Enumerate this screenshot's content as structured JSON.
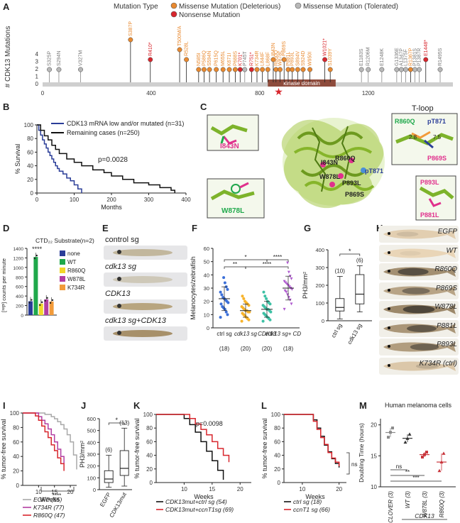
{
  "panel_letters": [
    "A",
    "B",
    "C",
    "D",
    "E",
    "F",
    "G",
    "H",
    "I",
    "J",
    "K",
    "L",
    "M"
  ],
  "colors": {
    "deleterious": "#e8892f",
    "nonsense": "#d8262d",
    "tolerated": "#b8b8b8",
    "kinase": "#8e4b3c",
    "black": "#111111",
    "red": "#d8262d",
    "blue": "#2a3d98",
    "green": "#1fa84b",
    "yellow": "#f2d729",
    "magenta": "#b23ea2",
    "orange": "#f29b3a",
    "ctrl": "#3b6fd8",
    "cdk13sg": "#f7b32b",
    "CDK13": "#3ec1a5",
    "rescue": "#b05bd0"
  },
  "panelA": {
    "ylabel": "# CDK13 Mutations",
    "legend": {
      "title": "Mutation Type",
      "items": [
        "Missense Mutation (Deleterious)",
        "Nonsense Mutation",
        "Missense Mutation (Tolerated)"
      ]
    },
    "axis_ticks": [
      "0",
      "400",
      "800",
      "1200"
    ],
    "yticks": [
      "0",
      "1",
      "2",
      "3",
      "4"
    ],
    "domain_label": "kinase domain",
    "chart_data": {
      "type": "lollipop",
      "xlim": [
        0,
        1512
      ],
      "ylim": [
        0,
        4
      ],
      "mutations": [
        {
          "label": "S325P",
          "pos": 25,
          "count": 1,
          "kind": "tolerated"
        },
        {
          "label": "S294N",
          "pos": 60,
          "count": 1,
          "kind": "tolerated"
        },
        {
          "label": "V327M",
          "pos": 140,
          "count": 1,
          "kind": "tolerated"
        },
        {
          "label": "S387P",
          "pos": 324,
          "count": 4,
          "kind": "deleterious"
        },
        {
          "label": "R410*",
          "pos": 397,
          "count": 2,
          "kind": "nonsense"
        },
        {
          "label": "T500M/A",
          "pos": 505,
          "count": 3,
          "kind": "deleterious"
        },
        {
          "label": "R528L",
          "pos": 530,
          "count": 2,
          "kind": "deleterious"
        },
        {
          "label": "N585I",
          "pos": 575,
          "count": 1,
          "kind": "deleterious"
        },
        {
          "label": "P586Q",
          "pos": 595,
          "count": 1,
          "kind": "deleterious"
        },
        {
          "label": "S594N",
          "pos": 615,
          "count": 1,
          "kind": "deleterious"
        },
        {
          "label": "P615Q",
          "pos": 640,
          "count": 1,
          "kind": "deleterious"
        },
        {
          "label": "M655L",
          "pos": 665,
          "count": 1,
          "kind": "deleterious"
        },
        {
          "label": "K671I",
          "pos": 688,
          "count": 1,
          "kind": "deleterious"
        },
        {
          "label": "P688S",
          "pos": 710,
          "count": 1,
          "kind": "deleterious"
        },
        {
          "label": "K701*",
          "pos": 728,
          "count": 1,
          "kind": "nonsense"
        },
        {
          "label": "P745T",
          "pos": 745,
          "count": 1,
          "kind": "tolerated"
        },
        {
          "label": "R751*",
          "pos": 770,
          "count": 1,
          "kind": "nonsense"
        },
        {
          "label": "K734R",
          "pos": 790,
          "count": 1,
          "kind": "deleterious"
        },
        {
          "label": "L844F",
          "pos": 810,
          "count": 1,
          "kind": "deleterious"
        },
        {
          "label": "L868F",
          "pos": 830,
          "count": 1,
          "kind": "deleterious"
        },
        {
          "label": "I843N",
          "pos": 850,
          "count": 2,
          "kind": "deleterious"
        },
        {
          "label": "R860Q",
          "pos": 860,
          "count": 1,
          "kind": "deleterious"
        },
        {
          "label": "W878L",
          "pos": 875,
          "count": 1,
          "kind": "deleterious"
        },
        {
          "label": "P869S",
          "pos": 890,
          "count": 2,
          "kind": "deleterious"
        },
        {
          "label": "P881L",
          "pos": 905,
          "count": 1,
          "kind": "deleterious"
        },
        {
          "label": "P893L",
          "pos": 920,
          "count": 1,
          "kind": "deleterious"
        },
        {
          "label": "S894V",
          "pos": 940,
          "count": 1,
          "kind": "deleterious"
        },
        {
          "label": "S924D",
          "pos": 960,
          "count": 1,
          "kind": "deleterious"
        },
        {
          "label": "W950I",
          "pos": 985,
          "count": 1,
          "kind": "deleterious"
        },
        {
          "label": "W1021*",
          "pos": 1040,
          "count": 2,
          "kind": "nonsense"
        },
        {
          "label": "S1039Y",
          "pos": 1060,
          "count": 1,
          "kind": "deleterious"
        },
        {
          "label": "E1183S",
          "pos": 1175,
          "count": 1,
          "kind": "tolerated"
        },
        {
          "label": "R1206M",
          "pos": 1200,
          "count": 1,
          "kind": "tolerated"
        },
        {
          "label": "E1248K",
          "pos": 1250,
          "count": 1,
          "kind": "tolerated"
        },
        {
          "label": "G1336E",
          "pos": 1305,
          "count": 1,
          "kind": "tolerated"
        },
        {
          "label": "A1347P",
          "pos": 1322,
          "count": 1,
          "kind": "tolerated"
        },
        {
          "label": "L1375F",
          "pos": 1338,
          "count": 1,
          "kind": "tolerated"
        },
        {
          "label": "R1367P",
          "pos": 1356,
          "count": 1,
          "kind": "deleterious"
        },
        {
          "label": "P1381S",
          "pos": 1372,
          "count": 1,
          "kind": "tolerated"
        },
        {
          "label": "P1387R",
          "pos": 1388,
          "count": 1,
          "kind": "tolerated"
        },
        {
          "label": "E1448*",
          "pos": 1412,
          "count": 2,
          "kind": "nonsense"
        },
        {
          "label": "R1495S",
          "pos": 1465,
          "count": 1,
          "kind": "tolerated"
        }
      ],
      "domain": {
        "start": 830,
        "end": 1080
      }
    }
  },
  "panelB": {
    "ylabel": "% Survival",
    "xlabel": "Months",
    "legend": [
      "CDK13 mRNA low and/or mutated (n=31)",
      "Remaining cases (n=250)"
    ],
    "pvalue": "p=0.0028",
    "xticks": [
      "0",
      "100",
      "200",
      "300",
      "400"
    ],
    "yticks": [
      "0",
      "20",
      "40",
      "60",
      "80",
      "100"
    ],
    "chart_data": {
      "type": "line",
      "xlim": [
        0,
        400
      ],
      "ylim": [
        0,
        100
      ],
      "series": [
        {
          "name": "CDK13 mRNA low and/or mutated (n=31)",
          "x": [
            0,
            5,
            10,
            15,
            20,
            25,
            30,
            35,
            40,
            45,
            50,
            55,
            60,
            70,
            80,
            90,
            100,
            110,
            120
          ],
          "y": [
            100,
            92,
            85,
            78,
            72,
            66,
            60,
            55,
            50,
            45,
            40,
            36,
            32,
            28,
            22,
            18,
            12,
            6,
            0
          ]
        },
        {
          "name": "Remaining cases (n=250)",
          "x": [
            0,
            10,
            20,
            30,
            40,
            50,
            60,
            80,
            100,
            120,
            150,
            180,
            200,
            230,
            260,
            300,
            330,
            360,
            370
          ],
          "y": [
            100,
            92,
            84,
            78,
            70,
            64,
            58,
            50,
            45,
            40,
            34,
            30,
            25,
            20,
            15,
            12,
            8,
            4,
            0
          ]
        }
      ]
    }
  },
  "panelC": {
    "title": "T-loop",
    "residues": [
      "I843N",
      "R860Q",
      "W878L",
      "P893L",
      "P869S",
      "pT871",
      "P881L"
    ],
    "inset_top_left": "I843N",
    "inset_bottom_left": "W878L",
    "inset_right_top": [
      "R860Q",
      "pT871",
      "P869S"
    ],
    "inset_right_bottom": [
      "P893L",
      "P881L"
    ],
    "distances": [
      "2.8",
      "7.5"
    ]
  },
  "panelD": {
    "title": "CTD₂₂ Substrate(n=2)",
    "ylabel": "[³²P] counts per minute",
    "stars": "****",
    "yticks": [
      "0",
      "200",
      "400",
      "600",
      "800",
      "1000",
      "1200",
      "1400"
    ],
    "chart_data": {
      "type": "bar",
      "categories": [
        "none",
        "WT",
        "R860Q",
        "W878L",
        "K734R"
      ],
      "values": [
        290,
        1220,
        240,
        330,
        285
      ],
      "ylim": [
        0,
        1400
      ]
    }
  },
  "panelE": {
    "labels": [
      "control sg",
      "cdk13 sg",
      "CDK13",
      "cdk13 sg+CDK13"
    ]
  },
  "panelF": {
    "ylabel": "Melanocytes/zebrafish",
    "sig": [
      "**",
      "****",
      "*",
      "****"
    ],
    "categories": [
      "ctrl sg",
      "cdk13 sg",
      "CDK13",
      "cdk13 sg+ CDK13"
    ],
    "ns": [
      "(18)",
      "(20)",
      "(20)",
      "(18)"
    ],
    "yticks": [
      "0",
      "10",
      "20",
      "30",
      "40",
      "50",
      "60"
    ],
    "chart_data": {
      "type": "scatter",
      "ylim": [
        0,
        60
      ],
      "series": [
        {
          "name": "ctrl sg",
          "means": 22,
          "sd": 9,
          "values": [
            8,
            10,
            12,
            14,
            15,
            16,
            18,
            19,
            20,
            21,
            22,
            23,
            25,
            27,
            29,
            31,
            34,
            38
          ]
        },
        {
          "name": "cdk13 sg",
          "means": 13,
          "sd": 5,
          "values": [
            5,
            6,
            7,
            8,
            9,
            10,
            11,
            12,
            12,
            13,
            13,
            14,
            15,
            16,
            17,
            18,
            19,
            20,
            22,
            24
          ]
        },
        {
          "name": "CDK13",
          "means": 14,
          "sd": 6,
          "values": [
            5,
            6,
            7,
            8,
            9,
            10,
            11,
            12,
            13,
            14,
            14,
            15,
            16,
            17,
            18,
            19,
            20,
            22,
            24,
            27
          ]
        },
        {
          "name": "cdk13 sg+ CDK13",
          "means": 30,
          "sd": 9,
          "values": [
            14,
            18,
            21,
            23,
            25,
            27,
            28,
            29,
            30,
            31,
            32,
            33,
            34,
            35,
            37,
            39,
            42,
            49
          ]
        }
      ]
    }
  },
  "panelG": {
    "ylabel": "PH3/mm²",
    "sig": "*",
    "categories": [
      "ctrl sg",
      "cdk13 sg"
    ],
    "ns": [
      "(10)",
      "(6)"
    ],
    "yticks": [
      "0",
      "100",
      "200",
      "300",
      "400"
    ],
    "chart_data": {
      "type": "box",
      "ylim": [
        0,
        400
      ],
      "boxes": [
        {
          "name": "ctrl sg",
          "min": 10,
          "q1": 55,
          "median": 75,
          "q3": 125,
          "max": 250
        },
        {
          "name": "cdk13 sg",
          "min": 50,
          "q1": 95,
          "median": 150,
          "q3": 260,
          "max": 310
        }
      ]
    }
  },
  "panelH": {
    "labels": [
      "EGFP",
      "WT",
      "R860Q",
      "P869S",
      "W878L",
      "P881L",
      "P893L",
      "K734R (ctrl)"
    ]
  },
  "panelI": {
    "ylabel": "% tumor-free survival",
    "xlabel": "Weeks",
    "sig": "****",
    "legend": [
      "EGFP (55)",
      "K734R (77)",
      "R860Q (47)"
    ],
    "xticks": [
      "10",
      "15",
      "20"
    ],
    "yticks": [
      "0",
      "20",
      "40",
      "60",
      "80",
      "100"
    ],
    "chart_data": {
      "type": "line",
      "xlim": [
        5,
        22
      ],
      "ylim": [
        0,
        100
      ],
      "series": [
        {
          "name": "EGFP (55)",
          "x": [
            5,
            10,
            12,
            14,
            15,
            16,
            17,
            18,
            19,
            20,
            21,
            22
          ],
          "y": [
            100,
            100,
            98,
            95,
            92,
            88,
            84,
            78,
            70,
            60,
            42,
            22
          ]
        },
        {
          "name": "K734R (77)",
          "x": [
            5,
            9,
            10,
            11,
            12,
            13,
            14,
            15,
            16,
            17,
            18
          ],
          "y": [
            100,
            100,
            95,
            90,
            85,
            78,
            70,
            60,
            50,
            40,
            30
          ]
        },
        {
          "name": "R860Q (47)",
          "x": [
            5,
            8,
            9,
            10,
            11,
            12,
            13,
            14,
            15,
            16,
            17,
            18
          ],
          "y": [
            100,
            100,
            96,
            90,
            82,
            74,
            66,
            56,
            48,
            38,
            30,
            20
          ]
        }
      ]
    }
  },
  "panelJ": {
    "ylabel": "PH3/mm²",
    "sig": "*",
    "categories": [
      "EGFP",
      "CDK13mut"
    ],
    "ns": [
      "(6)",
      "(13)"
    ],
    "yticks": [
      "0",
      "100",
      "200",
      "300",
      "400",
      "500",
      "600"
    ],
    "chart_data": {
      "type": "box",
      "ylim": [
        0,
        600
      ],
      "boxes": [
        {
          "name": "EGFP",
          "min": 20,
          "q1": 60,
          "median": 90,
          "q3": 160,
          "max": 290
        },
        {
          "name": "CDK13mut",
          "min": 30,
          "q1": 120,
          "median": 180,
          "q3": 330,
          "max": 520
        }
      ]
    }
  },
  "panelK": {
    "ylabel": "% tumor-free survival",
    "xlabel": "Weeks",
    "pvalue": "p=0.0098",
    "legend": [
      "CDK13mut+ctrl sg (54)",
      "CDK13mut+ccnT1sg (69)"
    ],
    "xticks": [
      "10",
      "15",
      "20"
    ],
    "yticks": [
      "0",
      "20",
      "40",
      "60",
      "80",
      "100"
    ],
    "chart_data": {
      "type": "line",
      "xlim": [
        5,
        22
      ],
      "ylim": [
        0,
        100
      ],
      "series": [
        {
          "name": "CDK13mut+ctrl sg (54)",
          "x": [
            5,
            9,
            10,
            11,
            12,
            13,
            14,
            15,
            16,
            17
          ],
          "y": [
            100,
            100,
            94,
            85,
            74,
            60,
            46,
            32,
            18,
            4
          ]
        },
        {
          "name": "CDK13mut+ccnT1sg (69)",
          "x": [
            5,
            10,
            11,
            12,
            13,
            14,
            15,
            16,
            17,
            18
          ],
          "y": [
            100,
            100,
            94,
            86,
            78,
            70,
            60,
            50,
            40,
            30
          ]
        }
      ]
    }
  },
  "panelL": {
    "ylabel": "% tumor-free survival",
    "xlabel": "Weeks",
    "sig": "ns",
    "legend": [
      "ctrl sg (18)",
      "ccnT1 sg (66)"
    ],
    "xticks": [
      "10",
      "20"
    ],
    "yticks": [
      "0",
      "20",
      "40",
      "60",
      "80",
      "100"
    ],
    "chart_data": {
      "type": "line",
      "xlim": [
        5,
        22
      ],
      "ylim": [
        0,
        100
      ],
      "series": [
        {
          "name": "ctrl sg (18)",
          "x": [
            5,
            12,
            13,
            14,
            15,
            16,
            17,
            18,
            19,
            20
          ],
          "y": [
            100,
            100,
            92,
            80,
            68,
            55,
            45,
            35,
            28,
            22
          ]
        },
        {
          "name": "ccnT1 sg (66)",
          "x": [
            5,
            12,
            13,
            14,
            15,
            16,
            17,
            18,
            19,
            20
          ],
          "y": [
            100,
            100,
            90,
            78,
            66,
            56,
            44,
            36,
            30,
            24
          ]
        }
      ]
    }
  },
  "panelM": {
    "title": "Human melanoma cells",
    "ylabel": "Doubling Time (hours)",
    "sig": [
      "ns",
      "**",
      "***"
    ],
    "categories": [
      "CLOVER (3)",
      "WT (3)",
      "W878L (3)",
      "R860Q (3)"
    ],
    "group": "CDK13",
    "yticks": [
      "10",
      "15",
      "20"
    ],
    "chart_data": {
      "type": "scatter",
      "ylim": [
        10,
        21
      ],
      "series": [
        {
          "name": "CLOVER (3)",
          "values": [
            18.0,
            18.8,
            19.5
          ]
        },
        {
          "name": "WT (3)",
          "values": [
            17.2,
            17.8,
            18.5
          ]
        },
        {
          "name": "W878L (3)",
          "values": [
            14.8,
            15.2,
            15.6
          ]
        },
        {
          "name": "R860Q (3)",
          "values": [
            12.6,
            14.0,
            15.4
          ]
        }
      ]
    }
  }
}
